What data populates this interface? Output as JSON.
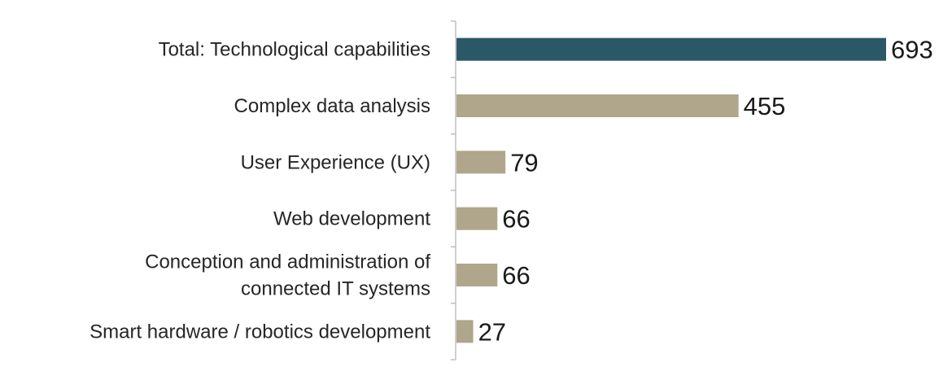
{
  "chart_data": {
    "type": "bar",
    "orientation": "horizontal",
    "categories": [
      [
        "Total: Technological capabilities"
      ],
      [
        "Complex data analysis"
      ],
      [
        "User Experience (UX)"
      ],
      [
        "Web development"
      ],
      [
        "Conception and administration of",
        "connected IT systems"
      ],
      [
        "Smart hardware / robotics development"
      ]
    ],
    "values": [
      693,
      455,
      79,
      66,
      66,
      27
    ],
    "xlim": [
      0,
      693
    ],
    "grid": false,
    "legend": "none",
    "colors": {
      "highlight": "#2b5867",
      "bar": "#afa68b",
      "axis": "#bfbfbf"
    },
    "highlight_index": 0
  }
}
